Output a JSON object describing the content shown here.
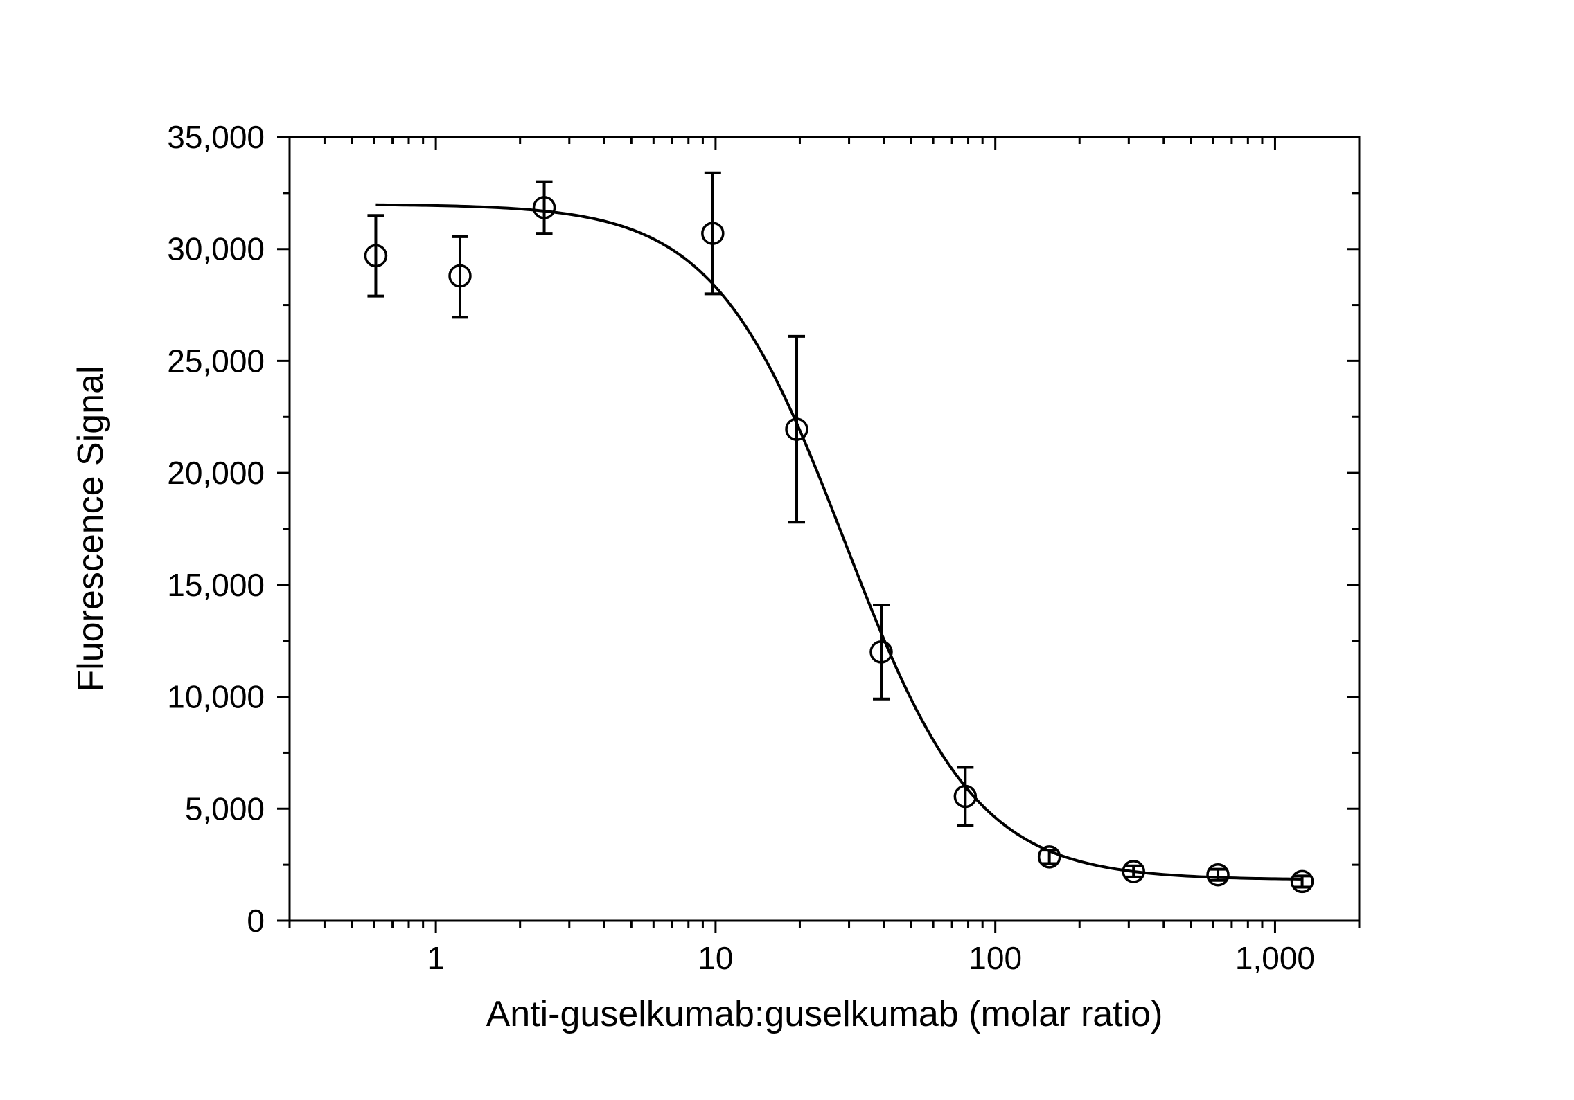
{
  "chart_data": {
    "type": "scatter",
    "title": "",
    "xlabel": "Anti-guselkumab:guselkumab (molar ratio)",
    "ylabel": "Fluorescence Signal",
    "xscale": "log",
    "xlim": [
      0.3,
      2000
    ],
    "ylim": [
      0,
      35000
    ],
    "grid": false,
    "legend": "none",
    "x_ticks": [
      {
        "value": 1,
        "label": "1"
      },
      {
        "value": 10,
        "label": "10"
      },
      {
        "value": 100,
        "label": "100"
      },
      {
        "value": 1000,
        "label": "1,000"
      }
    ],
    "y_ticks": [
      {
        "value": 0,
        "label": "0"
      },
      {
        "value": 5000,
        "label": "5,000"
      },
      {
        "value": 10000,
        "label": "10,000"
      },
      {
        "value": 15000,
        "label": "15,000"
      },
      {
        "value": 20000,
        "label": "20,000"
      },
      {
        "value": 25000,
        "label": "25,000"
      },
      {
        "value": 30000,
        "label": "30,000"
      },
      {
        "value": 35000,
        "label": "35,000"
      }
    ],
    "points": [
      {
        "x": 0.61,
        "y": 29700,
        "err_low": 27900,
        "err_high": 31500
      },
      {
        "x": 1.22,
        "y": 28800,
        "err_low": 26950,
        "err_high": 30550
      },
      {
        "x": 2.44,
        "y": 31850,
        "err_low": 30700,
        "err_high": 33000
      },
      {
        "x": 9.77,
        "y": 30700,
        "err_low": 28000,
        "err_high": 33400
      },
      {
        "x": 19.5,
        "y": 21950,
        "err_low": 17800,
        "err_high": 26100
      },
      {
        "x": 39.1,
        "y": 12000,
        "err_low": 9900,
        "err_high": 14100
      },
      {
        "x": 78.1,
        "y": 5550,
        "err_low": 4250,
        "err_high": 6850
      },
      {
        "x": 156,
        "y": 2850,
        "err_low": 2550,
        "err_high": 3150
      },
      {
        "x": 312,
        "y": 2200,
        "err_low": 1950,
        "err_high": 2450
      },
      {
        "x": 625,
        "y": 2050,
        "err_low": 1800,
        "err_high": 2300
      },
      {
        "x": 1250,
        "y": 1750,
        "err_low": 1500,
        "err_high": 2000
      }
    ],
    "fit": {
      "type": "4PL",
      "top": 32000,
      "bottom": 1830,
      "ec50": 29,
      "hill": 1.85,
      "x_range": [
        0.61,
        1250
      ]
    }
  },
  "style": {
    "line_color": "#000000",
    "marker_fill": "#ffffff",
    "background": "#ffffff"
  }
}
